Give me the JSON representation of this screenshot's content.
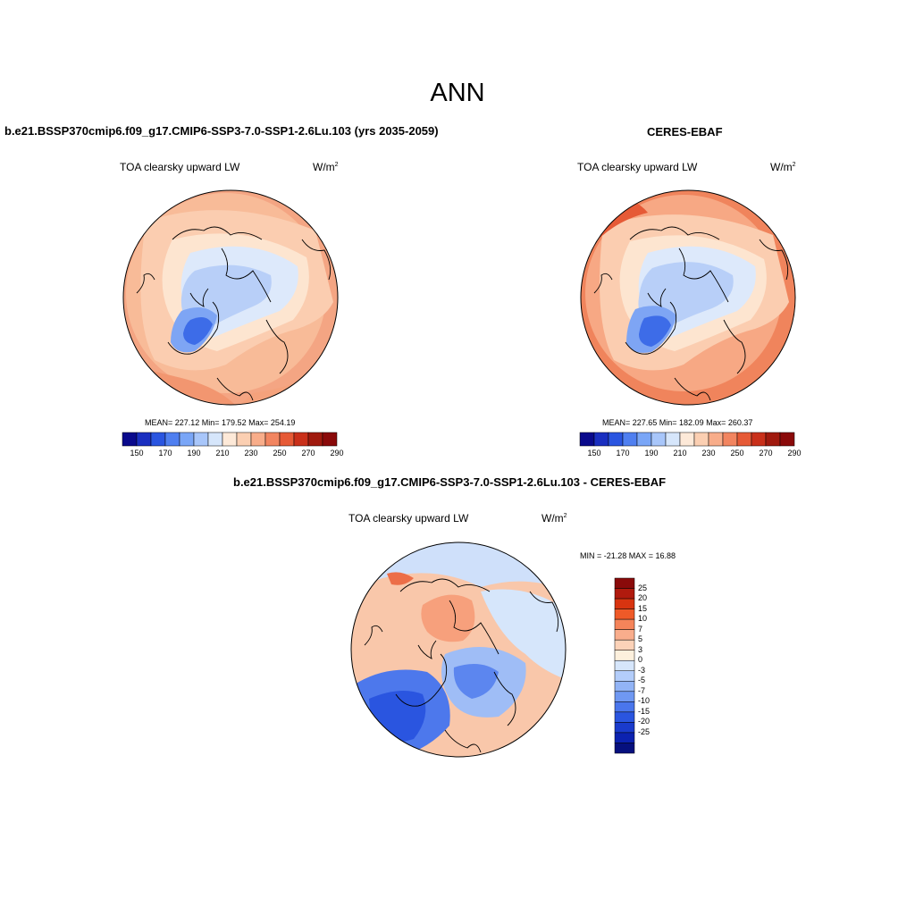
{
  "figure": {
    "season": "ANN"
  },
  "panels": {
    "model": {
      "title": "b.e21.BSSP370cmip6.f09_g17.CMIP6-SSP3-7.0-SSP1-2.6Lu.103 (yrs 2035-2059)",
      "variable": "TOA clearsky upward LW",
      "units_base": "W/m",
      "units_exp": "2",
      "stats": "MEAN= 227.12  Min= 179.52  Max= 254.19"
    },
    "obs": {
      "title": "CERES-EBAF",
      "variable": "TOA clearsky upward LW",
      "units_base": "W/m",
      "units_exp": "2",
      "stats": "MEAN= 227.65  Min= 182.09  Max= 260.37"
    },
    "diff": {
      "title": "b.e21.BSSP370cmip6.f09_g17.CMIP6-SSP3-7.0-SSP1-2.6Lu.103 - CERES-EBAF",
      "variable": "TOA clearsky upward LW",
      "units_base": "W/m",
      "units_exp": "2",
      "stats": "MIN = -21.28 MAX =  16.88"
    }
  },
  "colorbars": {
    "abs": {
      "colors": [
        "#0a0a8c",
        "#1a2fc0",
        "#2a55e0",
        "#4f7ff0",
        "#7aa6f7",
        "#a8c6fa",
        "#d6e6fb",
        "#fde9d8",
        "#fbcfb2",
        "#f8ad8a",
        "#f28560",
        "#e65a36",
        "#c9301a",
        "#a01a0e",
        "#8a0a0a"
      ],
      "ticks": [
        "150",
        "170",
        "190",
        "210",
        "230",
        "250",
        "270",
        "290"
      ]
    },
    "diff": {
      "colors": [
        "#8a0a0a",
        "#b01a0e",
        "#d83410",
        "#ef5a28",
        "#f5845a",
        "#f9ad8c",
        "#fcd2b8",
        "#fdf0dd",
        "#d6e6fb",
        "#b3cdfa",
        "#92b4f6",
        "#6f98f2",
        "#4a76ec",
        "#2a55e0",
        "#1a3bcc",
        "#0c22b0",
        "#06107e"
      ],
      "ticks": [
        "25",
        "20",
        "15",
        "10",
        "7",
        "5",
        "3",
        "0",
        "-3",
        "-5",
        "-7",
        "-10",
        "-15",
        "-20",
        "-25"
      ]
    }
  },
  "colors": {
    "cold_core": "#3d6ce8",
    "cold": "#7ea5f4",
    "cool": "#b8cff8",
    "neutral_cool": "#dde9fb",
    "neutral_warm": "#fde5d0",
    "warm": "#f9bd9a",
    "hot": "#f29670",
    "hotter": "#ec7048"
  }
}
